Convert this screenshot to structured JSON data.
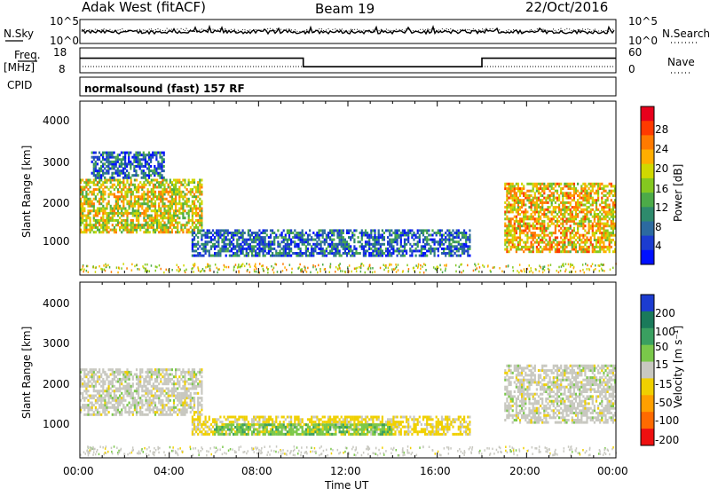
{
  "header": {
    "title": "Adak West (fitACF)",
    "beam": "Beam 19",
    "date": "22/Oct/2016"
  },
  "top_panels": {
    "nsky_label": "N.Sky",
    "nsky_ticks": [
      "10^5",
      "10^0"
    ],
    "nsearch_label": "N.Search",
    "nsearch_ticks": [
      "10^5",
      "10^0"
    ],
    "freq_label": "Freq.",
    "freq_unit": "[MHz]",
    "freq_ticks": [
      "18",
      "8"
    ],
    "nave_label": "Nave",
    "nave_ticks": [
      "60",
      "0"
    ],
    "cpid_label": "CPID",
    "cpid_value": "normalsound (fast) 157 RF"
  },
  "power_colorbar": {
    "label": "Power [dB]",
    "ticks": [
      "28",
      "24",
      "20",
      "16",
      "12",
      "8",
      "4"
    ],
    "colors": [
      "#e8001c",
      "#ff3a00",
      "#ff7a00",
      "#ffae00",
      "#d0d800",
      "#84c820",
      "#4caa48",
      "#2e8a6c",
      "#2c6aa0",
      "#1c3cd0",
      "#0010ff"
    ]
  },
  "velocity_colorbar": {
    "label": "Velocity [m s⁻¹]",
    "ticks": [
      "200",
      "100",
      "50",
      "15",
      "-15",
      "-50",
      "-100",
      "-200"
    ],
    "colors": [
      "#1c3cd0",
      "#1a7a5a",
      "#3aa060",
      "#7ac84a",
      "#c8c8c0",
      "#f0d000",
      "#ffa000",
      "#ff6a00",
      "#ee1010"
    ]
  },
  "axes": {
    "ylabel": "Slant Range [km]",
    "yticks": [
      "4000",
      "3000",
      "2000",
      "1000"
    ],
    "xticks": [
      "00:00",
      "04:00",
      "08:00",
      "12:00",
      "16:00",
      "20:00",
      "00:00"
    ],
    "xlabel": "Time UT"
  },
  "chart_data": [
    {
      "type": "line",
      "name": "Frequency",
      "ylabel": "Freq. [MHz]",
      "ylim": [
        8,
        18
      ],
      "x_hours": [
        0,
        10,
        10,
        18,
        18,
        24
      ],
      "values": [
        14,
        14,
        10,
        10,
        14,
        14
      ]
    },
    {
      "type": "heatmap",
      "name": "Power",
      "title": "Power [dB]",
      "xlabel": "Time UT",
      "ylabel": "Slant Range [km]",
      "xlim_hours": [
        0,
        24
      ],
      "ylim": [
        180,
        4600
      ],
      "color_ticks": [
        4,
        8,
        12,
        16,
        20,
        24,
        28
      ],
      "regions": [
        {
          "t_start": 0.0,
          "t_end": 5.5,
          "range_start": 1200,
          "range_end": 2600,
          "value": 18
        },
        {
          "t_start": 0.5,
          "t_end": 3.8,
          "range_start": 2600,
          "range_end": 3300,
          "value": 6
        },
        {
          "t_start": 5.0,
          "t_end": 17.5,
          "range_start": 600,
          "range_end": 1300,
          "value": 6
        },
        {
          "t_start": 19.0,
          "t_end": 24.0,
          "range_start": 700,
          "range_end": 2500,
          "value": 20
        }
      ]
    },
    {
      "type": "heatmap",
      "name": "Velocity",
      "title": "Velocity [m s-1]",
      "xlabel": "Time UT",
      "ylabel": "Slant Range [km]",
      "xlim_hours": [
        0,
        24
      ],
      "ylim": [
        180,
        4600
      ],
      "color_ticks": [
        -200,
        -100,
        -50,
        -15,
        15,
        50,
        100,
        200
      ],
      "regions": [
        {
          "t_start": 0.0,
          "t_end": 5.5,
          "range_start": 1200,
          "range_end": 2400,
          "value": 0
        },
        {
          "t_start": 5.0,
          "t_end": 17.5,
          "range_start": 700,
          "range_end": 1200,
          "value": -40
        },
        {
          "t_start": 6.0,
          "t_end": 14.0,
          "range_start": 700,
          "range_end": 1000,
          "value": 60
        },
        {
          "t_start": 19.0,
          "t_end": 24.0,
          "range_start": 1000,
          "range_end": 2500,
          "value": 0
        }
      ]
    }
  ]
}
